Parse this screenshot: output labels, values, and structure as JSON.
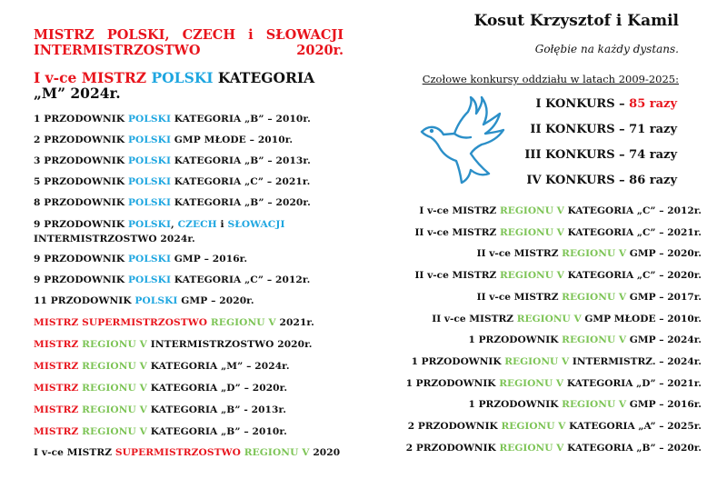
{
  "colors": {
    "red": "#e8141c",
    "blue": "#1ea6e0",
    "green": "#7dc456",
    "black": "#111111"
  },
  "left": {
    "title": [
      {
        "t": "MISTRZ POLSKI, CZECH i SŁOWACJI INTERMISTRZOSTWO 2020r.",
        "c": "r"
      }
    ],
    "subtitle": [
      {
        "t": "I v-ce MISTRZ ",
        "c": "r"
      },
      {
        "t": "POLSKI ",
        "c": "b"
      },
      {
        "t": "KATEGORIA „M” 2024r.",
        "c": "k"
      }
    ],
    "items": [
      [
        {
          "t": "1 PRZODOWNIK ",
          "c": "k"
        },
        {
          "t": "POLSKI",
          "c": "b"
        },
        {
          "t": " KATEGORIA „B” – 2010r.",
          "c": "k"
        }
      ],
      [
        {
          "t": "2 PRZODOWNIK ",
          "c": "k"
        },
        {
          "t": "POLSKI",
          "c": "b"
        },
        {
          "t": " GMP MŁODE – 2010r.",
          "c": "k"
        }
      ],
      [
        {
          "t": "3 PRZODOWNIK ",
          "c": "k"
        },
        {
          "t": "POLSKI",
          "c": "b"
        },
        {
          "t": " KATEGORIA „B” – 2013r.",
          "c": "k"
        }
      ],
      [
        {
          "t": "5 PRZODOWNIK ",
          "c": "k"
        },
        {
          "t": "POLSKI",
          "c": "b"
        },
        {
          "t": " KATEGORIA „C” – 2021r.",
          "c": "k"
        }
      ],
      [
        {
          "t": "8 PRZODOWNIK ",
          "c": "k"
        },
        {
          "t": "POLSKI",
          "c": "b"
        },
        {
          "t": " KATEGORIA „B” – 2020r.",
          "c": "k"
        }
      ],
      [
        {
          "t": "9 PRZODOWNIK ",
          "c": "k"
        },
        {
          "t": "POLSKI",
          "c": "b"
        },
        {
          "t": ", ",
          "c": "k"
        },
        {
          "t": "CZECH",
          "c": "b"
        },
        {
          "t": " i ",
          "c": "k"
        },
        {
          "t": "SŁOWACJI",
          "c": "b"
        },
        {
          "t": "\nINTERMISTRZOSTWO 2024r.",
          "c": "k"
        }
      ],
      [
        {
          "t": "9 PRZODOWNIK ",
          "c": "k"
        },
        {
          "t": "POLSKI",
          "c": "b"
        },
        {
          "t": " GMP – 2016r.",
          "c": "k"
        }
      ],
      [
        {
          "t": "9 PRZODOWNIK ",
          "c": "k"
        },
        {
          "t": "POLSKI",
          "c": "b"
        },
        {
          "t": " KATEGORIA „C” – 2012r.",
          "c": "k"
        }
      ],
      [
        {
          "t": "11 PRZODOWNIK ",
          "c": "k"
        },
        {
          "t": "POLSKI",
          "c": "b"
        },
        {
          "t": " GMP – 2020r.",
          "c": "k"
        }
      ],
      [
        {
          "t": "MISTRZ SUPERMISTRZOSTWO ",
          "c": "r"
        },
        {
          "t": "REGIONU V",
          "c": "g"
        },
        {
          "t": " 2021r.",
          "c": "k"
        }
      ],
      [
        {
          "t": "MISTRZ ",
          "c": "r"
        },
        {
          "t": "REGIONU V",
          "c": "g"
        },
        {
          "t": " INTERMISTRZOSTWO 2020r.",
          "c": "k"
        }
      ],
      [
        {
          "t": "MISTRZ ",
          "c": "r"
        },
        {
          "t": "REGIONU V",
          "c": "g"
        },
        {
          "t": " KATEGORIA „M” – 2024r.",
          "c": "k"
        }
      ],
      [
        {
          "t": "MISTRZ ",
          "c": "r"
        },
        {
          "t": "REGIONU V",
          "c": "g"
        },
        {
          "t": " KATEGORIA „D” – 2020r.",
          "c": "k"
        }
      ],
      [
        {
          "t": "MISTRZ ",
          "c": "r"
        },
        {
          "t": "REGIONU V",
          "c": "g"
        },
        {
          "t": " KATEGORIA „B” - 2013r.",
          "c": "k"
        }
      ],
      [
        {
          "t": "MISTRZ ",
          "c": "r"
        },
        {
          "t": "REGIONU V",
          "c": "g"
        },
        {
          "t": " KATEGORIA „B” – 2010r.",
          "c": "k"
        }
      ],
      [
        {
          "t": "I v-ce MISTRZ ",
          "c": "k"
        },
        {
          "t": "SUPERMISTRZOSTWO ",
          "c": "r"
        },
        {
          "t": "REGIONU V",
          "c": "g"
        },
        {
          "t": " 2020",
          "c": "k"
        }
      ]
    ]
  },
  "right": {
    "title": "Kosut Krzysztof i Kamil",
    "subtitle": "Gołębie na każdy dystans.",
    "heading": "Czołowe konkursy oddziału w latach 2009-2025:",
    "dove_icon": "dove-icon",
    "konkursy": [
      [
        {
          "t": "I KONKURS – ",
          "c": "k"
        },
        {
          "t": "85 razy",
          "c": "r"
        }
      ],
      [
        {
          "t": "II KONKURS – 71 razy",
          "c": "k"
        }
      ],
      [
        {
          "t": "III KONKURS – 74 razy",
          "c": "k"
        }
      ],
      [
        {
          "t": "IV KONKURS – 86 razy",
          "c": "k"
        }
      ]
    ],
    "items": [
      [
        {
          "t": "I v-ce MISTRZ ",
          "c": "k"
        },
        {
          "t": "REGIONU V",
          "c": "g"
        },
        {
          "t": " KATEGORIA „C” – 2012r.",
          "c": "k"
        }
      ],
      [
        {
          "t": "II v-ce MISTRZ ",
          "c": "k"
        },
        {
          "t": "REGIONU V",
          "c": "g"
        },
        {
          "t": " KATEGORIA „C” – 2021r.",
          "c": "k"
        }
      ],
      [
        {
          "t": "II v-ce MISTRZ ",
          "c": "k"
        },
        {
          "t": "REGIONU V",
          "c": "g"
        },
        {
          "t": " GMP – 2020r.",
          "c": "k"
        }
      ],
      [
        {
          "t": "II v-ce MISTRZ ",
          "c": "k"
        },
        {
          "t": "REGIONU V",
          "c": "g"
        },
        {
          "t": " KATEGORIA „C” – 2020r.",
          "c": "k"
        }
      ],
      [
        {
          "t": "II v-ce MISTRZ ",
          "c": "k"
        },
        {
          "t": "REGIONU V",
          "c": "g"
        },
        {
          "t": " GMP – 2017r.",
          "c": "k"
        }
      ],
      [
        {
          "t": "II v-ce MISTRZ ",
          "c": "k"
        },
        {
          "t": "REGIONU V",
          "c": "g"
        },
        {
          "t": " GMP MŁODE – 2010r.",
          "c": "k"
        }
      ],
      [
        {
          "t": "1 PRZODOWNIK ",
          "c": "k"
        },
        {
          "t": "REGIONU V",
          "c": "g"
        },
        {
          "t": " GMP – 2024r.",
          "c": "k"
        }
      ],
      [
        {
          "t": "1 PRZODOWNIK ",
          "c": "k"
        },
        {
          "t": "REGIONU V",
          "c": "g"
        },
        {
          "t": " INTERMISTRZ. – 2024r.",
          "c": "k"
        }
      ],
      [
        {
          "t": "1 PRZODOWNIK ",
          "c": "k"
        },
        {
          "t": "REGIONU V",
          "c": "g"
        },
        {
          "t": " KATEGORIA „D” – 2021r.",
          "c": "k"
        }
      ],
      [
        {
          "t": "1 PRZODOWNIK ",
          "c": "k"
        },
        {
          "t": "REGIONU V",
          "c": "g"
        },
        {
          "t": " GMP – 2016r.",
          "c": "k"
        }
      ],
      [
        {
          "t": "2 PRZODOWNIK ",
          "c": "k"
        },
        {
          "t": "REGIONU V",
          "c": "g"
        },
        {
          "t": " KATEGORIA „A” – 2025r.",
          "c": "k"
        }
      ],
      [
        {
          "t": "2 PRZODOWNIK ",
          "c": "k"
        },
        {
          "t": "REGIONU V",
          "c": "g"
        },
        {
          "t": " KATEGORIA „B” – 2020r.",
          "c": "k"
        }
      ]
    ]
  }
}
